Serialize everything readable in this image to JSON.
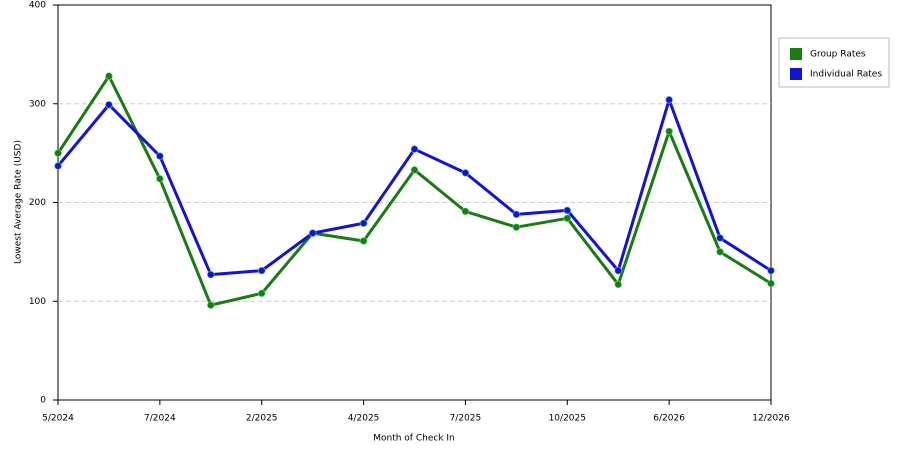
{
  "chart_data": {
    "type": "line",
    "x_label": "Month of Check In",
    "y_label": "Lowest Average Rate (USD)",
    "categories": [
      "5/2024",
      null,
      "7/2024",
      null,
      "2/2025",
      null,
      "4/2025",
      null,
      "7/2025",
      null,
      "10/2025",
      null,
      "6/2026",
      null,
      "12/2026"
    ],
    "series": [
      {
        "name": "Group Rates",
        "color": "#1a7a14",
        "values": [
          250,
          328,
          224,
          96,
          108,
          169,
          161,
          233,
          191,
          175,
          184,
          117,
          272,
          150,
          118
        ]
      },
      {
        "name": "Individual Rates",
        "color": "#1414d0",
        "values": [
          237,
          299,
          247,
          127,
          131,
          169,
          179,
          254,
          230,
          188,
          192,
          131,
          304,
          164,
          131
        ]
      }
    ],
    "ylim": [
      0,
      400
    ],
    "yticks": [
      0,
      100,
      200,
      300,
      400
    ],
    "grid": true
  }
}
